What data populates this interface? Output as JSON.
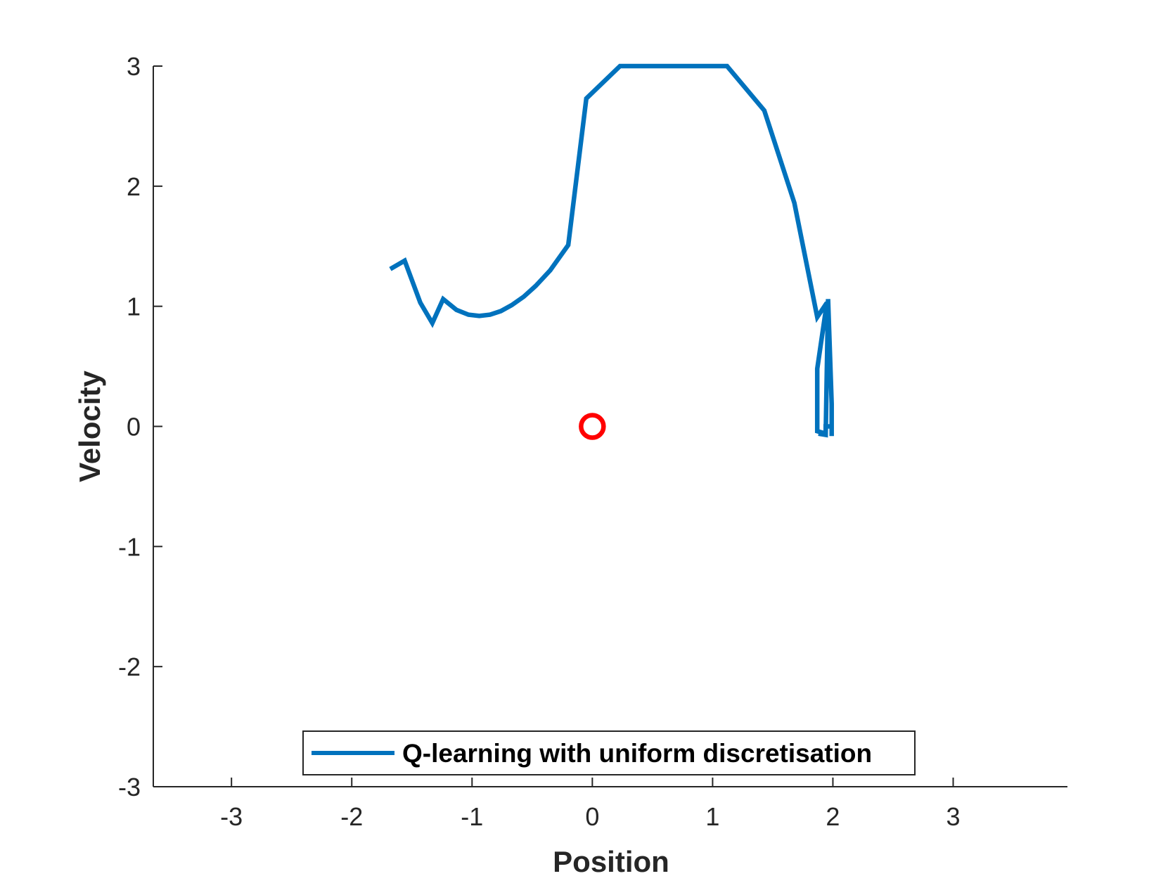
{
  "chart_data": {
    "type": "line",
    "xlabel": "Position",
    "ylabel": "Velocity",
    "xlim": [
      -3.65,
      3.95
    ],
    "ylim": [
      -3,
      3
    ],
    "xticks": [
      -3,
      -2,
      -1,
      0,
      1,
      2,
      3
    ],
    "yticks": [
      -3,
      -2,
      -1,
      0,
      1,
      2,
      3
    ],
    "xtick_labels": [
      "-3",
      "-2",
      "-1",
      "0",
      "1",
      "2",
      "3"
    ],
    "ytick_labels": [
      "-3",
      "-2",
      "-1",
      "0",
      "1",
      "2",
      "3"
    ],
    "grid": false,
    "legend_position": "bottom-center",
    "legend_entry": "Q-learning with uniform discretisation",
    "series": [
      {
        "name": "Q-learning with uniform discretisation",
        "color": "#0072BD",
        "points": [
          [
            -1.68,
            1.31
          ],
          [
            -1.56,
            1.38
          ],
          [
            -1.43,
            1.03
          ],
          [
            -1.33,
            0.86
          ],
          [
            -1.24,
            1.06
          ],
          [
            -1.13,
            0.97
          ],
          [
            -1.03,
            0.93
          ],
          [
            -0.94,
            0.92
          ],
          [
            -0.85,
            0.93
          ],
          [
            -0.76,
            0.96
          ],
          [
            -0.67,
            1.01
          ],
          [
            -0.57,
            1.08
          ],
          [
            -0.47,
            1.17
          ],
          [
            -0.35,
            1.3
          ],
          [
            -0.2,
            1.51
          ],
          [
            -0.05,
            2.73
          ],
          [
            0.23,
            3.0
          ],
          [
            1.12,
            3.0
          ],
          [
            1.43,
            2.63
          ],
          [
            1.68,
            1.86
          ],
          [
            1.87,
            0.91
          ],
          [
            1.95,
            1.03
          ],
          [
            1.87,
            0.48
          ],
          [
            1.87,
            -0.04
          ],
          [
            1.94,
            -0.06
          ],
          [
            1.94,
            0.0
          ],
          [
            1.99,
            0.0
          ],
          [
            1.99,
            -0.08
          ],
          [
            1.99,
            0.19
          ],
          [
            1.96,
            1.06
          ],
          [
            1.94,
            -0.07
          ],
          [
            1.88,
            -0.06
          ]
        ]
      },
      {
        "name": "",
        "type": "scatter",
        "marker": "circle-open",
        "color": "#FF0000",
        "points": [
          [
            0,
            0
          ]
        ]
      }
    ]
  }
}
